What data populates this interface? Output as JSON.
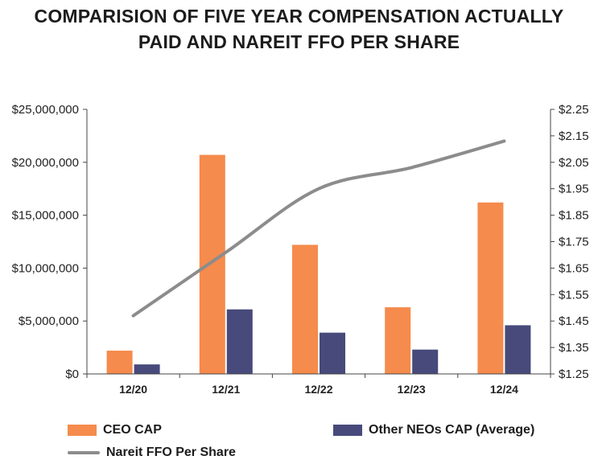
{
  "chart_data": {
    "type": "bar",
    "title_lines": [
      "COMPARISION OF FIVE YEAR COMPENSATION ACTUALLY",
      "PAID AND NAREIT FFO PER SHARE"
    ],
    "categories": [
      "12/20",
      "12/21",
      "12/22",
      "12/23",
      "12/24"
    ],
    "series": [
      {
        "name": "CEO CAP",
        "kind": "bar",
        "axis": "left",
        "color": "#F58B4C",
        "values": [
          2200000,
          20700000,
          12200000,
          6300000,
          16200000
        ]
      },
      {
        "name": "Other NEOs CAP (Average)",
        "kind": "bar",
        "axis": "left",
        "color": "#474A7A",
        "values": [
          900000,
          6100000,
          3900000,
          2300000,
          4600000
        ]
      },
      {
        "name": "Nareit FFO Per Share",
        "kind": "line",
        "axis": "right",
        "color": "#8C8C8C",
        "values": [
          1.47,
          1.71,
          1.95,
          2.03,
          2.13
        ]
      }
    ],
    "left_axis": {
      "ylim": [
        0,
        25000000
      ],
      "ticks": [
        0,
        5000000,
        10000000,
        15000000,
        20000000,
        25000000
      ],
      "tick_labels": [
        "$0",
        "$5,000,000",
        "$10,000,000",
        "$15,000,000",
        "$20,000,000",
        "$25,000,000"
      ]
    },
    "right_axis": {
      "ylim": [
        1.25,
        2.25
      ],
      "ticks": [
        1.25,
        1.35,
        1.45,
        1.55,
        1.65,
        1.75,
        1.85,
        1.95,
        2.05,
        2.15,
        2.25
      ],
      "tick_labels": [
        "$1.25",
        "$1.35",
        "$1.45",
        "$1.55",
        "$1.65",
        "$1.75",
        "$1.85",
        "$1.95",
        "$2.05",
        "$2.15",
        "$2.25"
      ]
    },
    "legend_position": "bottom"
  }
}
